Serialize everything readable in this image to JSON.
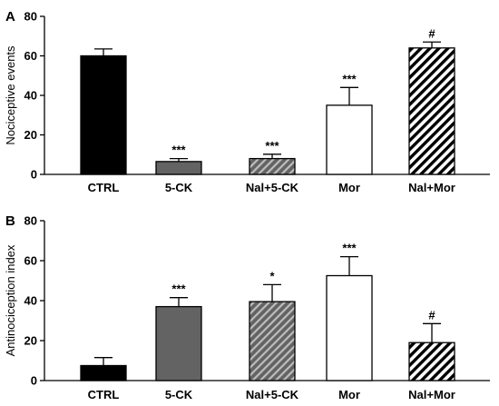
{
  "colors": {
    "black": "#000000",
    "dark_gray": "#636363",
    "white": "#ffffff"
  },
  "chart_data": [
    {
      "type": "bar",
      "panel": "A",
      "categories": [
        "CTRL",
        "5-CK",
        "Nal+5-CK",
        "Mor",
        "Nal+Mor"
      ],
      "values": [
        60,
        6.5,
        8,
        35,
        64
      ],
      "errors": [
        3.5,
        1.5,
        2.2,
        9,
        3
      ],
      "significance": [
        "",
        "***",
        "***",
        "***",
        "#"
      ],
      "fills": [
        "solid-black",
        "solid-gray",
        "hatch-gray",
        "white",
        "hatch-black"
      ],
      "ylabel": "Nociceptive events",
      "ylim": [
        0,
        80
      ],
      "yticks": [
        "0",
        "20",
        "40",
        "60",
        "80"
      ]
    },
    {
      "type": "bar",
      "panel": "B",
      "categories": [
        "CTRL",
        "5-CK",
        "Nal+5-CK",
        "Mor",
        "Nal+Mor"
      ],
      "values": [
        7.5,
        37,
        39.5,
        52.5,
        19
      ],
      "errors": [
        4,
        4.5,
        8.5,
        9.5,
        9.5
      ],
      "significance": [
        "",
        "***",
        "*",
        "***",
        "#"
      ],
      "fills": [
        "solid-black",
        "solid-gray",
        "hatch-gray",
        "white",
        "hatch-black"
      ],
      "ylabel": "Antinociception index",
      "ylim": [
        0,
        80
      ],
      "yticks": [
        "0",
        "20",
        "40",
        "60",
        "80"
      ]
    }
  ]
}
